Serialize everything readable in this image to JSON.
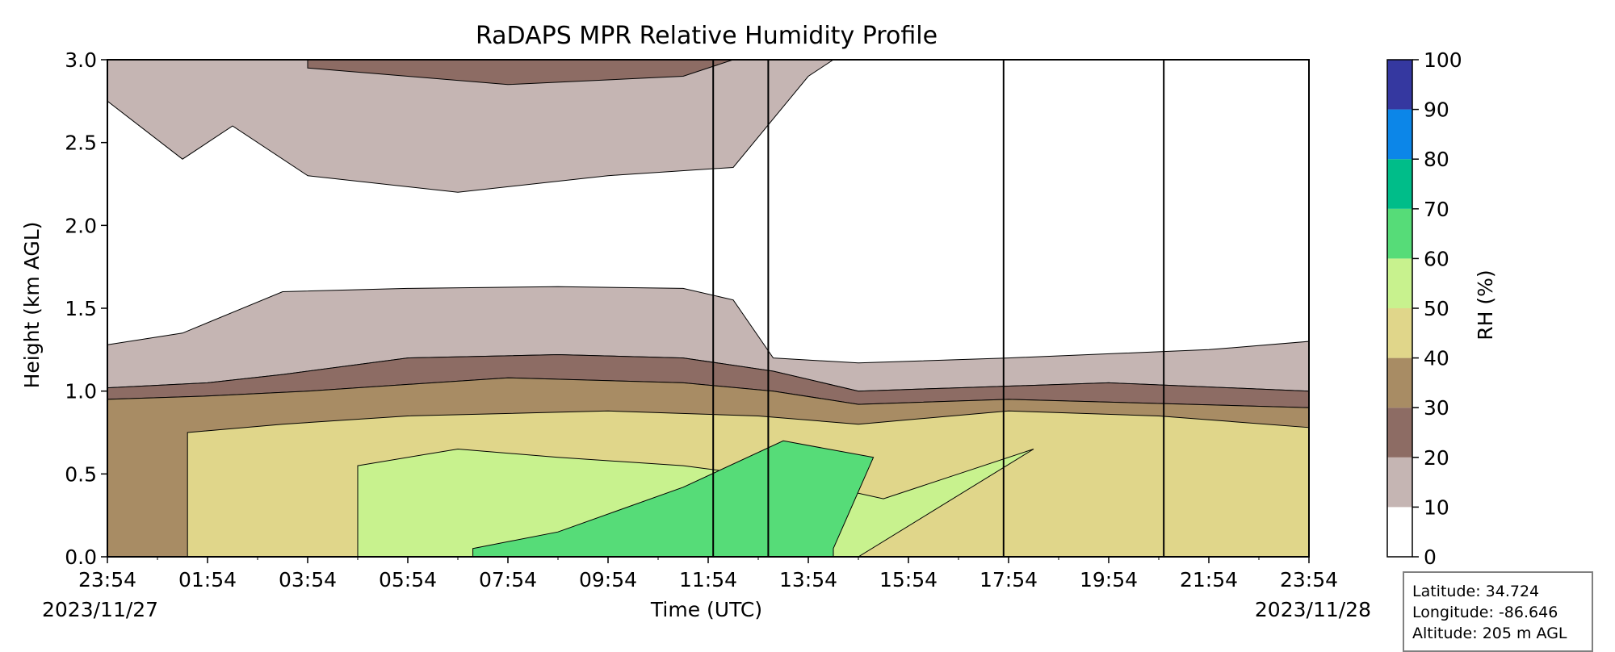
{
  "chart_data": {
    "type": "heatmap",
    "title": "RaDAPS MPR Relative Humidity Profile",
    "xlabel": "Time (UTC)",
    "ylabel": "Height (km AGL)",
    "x_ticks": [
      "23:54",
      "01:54",
      "03:54",
      "05:54",
      "07:54",
      "09:54",
      "11:54",
      "13:54",
      "15:54",
      "17:54",
      "19:54",
      "21:54",
      "23:54"
    ],
    "x_range_hours": [
      0,
      24
    ],
    "start_date": "2023/11/27",
    "end_date": "2023/11/28",
    "y_ticks": [
      "0.0",
      "0.5",
      "1.0",
      "1.5",
      "2.0",
      "2.5",
      "3.0"
    ],
    "ylim": [
      0,
      3.0
    ],
    "colorbar": {
      "label": "RH (%)",
      "levels": [
        0,
        10,
        20,
        30,
        40,
        50,
        60,
        70,
        80,
        90,
        100
      ],
      "tick_labels": [
        "0",
        "10",
        "20",
        "30",
        "40",
        "50",
        "60",
        "70",
        "80",
        "90",
        "100"
      ],
      "colors": [
        "#ffffff",
        "#c5b5b3",
        "#8d6c64",
        "#a88c64",
        "#e0d68a",
        "#c8f28e",
        "#56dc78",
        "#00bd89",
        "#0c86e8",
        "#3538a0"
      ]
    },
    "contour_bands": [
      {
        "range": [
          10,
          20
        ],
        "bottom": [
          [
            0,
            1.28
          ],
          [
            1.5,
            1.35
          ],
          [
            3.5,
            1.6
          ],
          [
            6,
            1.62
          ],
          [
            9,
            1.63
          ],
          [
            11.5,
            1.62
          ],
          [
            12.5,
            1.55
          ],
          [
            13.3,
            1.2
          ],
          [
            15,
            1.17
          ],
          [
            18,
            1.2
          ],
          [
            22,
            1.25
          ],
          [
            24,
            1.3
          ]
        ],
        "top": [
          [
            0,
            1.02
          ],
          [
            2,
            1.05
          ],
          [
            3.5,
            1.1
          ],
          [
            6,
            1.2
          ],
          [
            9,
            1.22
          ],
          [
            11.5,
            1.2
          ],
          [
            13.3,
            1.12
          ],
          [
            15,
            1.0
          ],
          [
            17,
            1.02
          ],
          [
            20,
            1.05
          ],
          [
            24,
            1.0
          ]
        ]
      },
      {
        "range": [
          20,
          30
        ],
        "bottom": [
          [
            0,
            1.02
          ],
          [
            2,
            1.05
          ],
          [
            3.5,
            1.1
          ],
          [
            6,
            1.2
          ],
          [
            9,
            1.22
          ],
          [
            11.5,
            1.2
          ],
          [
            13.3,
            1.12
          ],
          [
            15,
            1.0
          ],
          [
            17,
            1.02
          ],
          [
            20,
            1.05
          ],
          [
            24,
            1.0
          ]
        ],
        "top": [
          [
            0,
            0.95
          ],
          [
            2,
            0.97
          ],
          [
            4,
            1.0
          ],
          [
            8,
            1.08
          ],
          [
            11.5,
            1.05
          ],
          [
            13.3,
            1.0
          ],
          [
            15,
            0.92
          ],
          [
            18,
            0.95
          ],
          [
            24,
            0.9
          ]
        ]
      },
      {
        "range": [
          30,
          40
        ],
        "bottom": [
          [
            0,
            0.95
          ],
          [
            2,
            0.97
          ],
          [
            4,
            1.0
          ],
          [
            8,
            1.08
          ],
          [
            11.5,
            1.05
          ],
          [
            13.3,
            1.0
          ],
          [
            15,
            0.92
          ],
          [
            18,
            0.95
          ],
          [
            24,
            0.9
          ]
        ],
        "top": [
          [
            0,
            0.0
          ],
          [
            24,
            0.0
          ]
        ]
      },
      {
        "range": [
          40,
          50
        ],
        "bottom": [
          [
            1.6,
            0.75
          ],
          [
            3.5,
            0.8
          ],
          [
            6,
            0.85
          ],
          [
            10,
            0.88
          ],
          [
            13,
            0.85
          ],
          [
            15,
            0.8
          ],
          [
            18,
            0.88
          ],
          [
            21,
            0.85
          ],
          [
            24,
            0.78
          ]
        ],
        "top": [
          [
            1.6,
            0.0
          ],
          [
            24,
            0.0
          ]
        ]
      },
      {
        "range": [
          50,
          60
        ],
        "bottom": [
          [
            5,
            0.55
          ],
          [
            7,
            0.65
          ],
          [
            9,
            0.6
          ],
          [
            11.5,
            0.55
          ],
          [
            14,
            0.45
          ],
          [
            15.5,
            0.35
          ],
          [
            17,
            0.5
          ],
          [
            18.5,
            0.65
          ]
        ],
        "top": [
          [
            5,
            0.0
          ],
          [
            15,
            0.0
          ]
        ]
      },
      {
        "range": [
          60,
          70
        ],
        "bottom": [
          [
            7.3,
            0.05
          ],
          [
            9,
            0.15
          ],
          [
            11.5,
            0.42
          ],
          [
            13.5,
            0.7
          ],
          [
            15.3,
            0.6
          ],
          [
            14.5,
            0.05
          ]
        ],
        "top": [
          [
            7.3,
            0.0
          ],
          [
            14.5,
            0.0
          ]
        ]
      }
    ],
    "upper_layer_10_20": {
      "bottom": [
        [
          0,
          2.75
        ],
        [
          1.5,
          2.4
        ],
        [
          2.5,
          2.6
        ],
        [
          4,
          2.3
        ],
        [
          7,
          2.2
        ],
        [
          10,
          2.3
        ],
        [
          12.5,
          2.35
        ],
        [
          14,
          2.9
        ],
        [
          14.5,
          3.0
        ]
      ],
      "top": [
        [
          0,
          3.0
        ],
        [
          14.5,
          3.0
        ]
      ]
    },
    "upper_layer_20_30": {
      "bottom": [
        [
          4,
          2.95
        ],
        [
          6,
          2.9
        ],
        [
          8,
          2.85
        ],
        [
          11.5,
          2.9
        ],
        [
          12.5,
          3.0
        ]
      ],
      "top": [
        [
          4,
          3.0
        ],
        [
          12.5,
          3.0
        ]
      ]
    },
    "spikes_hours": [
      12.1,
      13.2,
      17.9,
      21.1
    ]
  },
  "info": {
    "latitude": "Latitude: 34.724",
    "longitude": "Longitude: -86.646",
    "altitude": "Altitude: 205 m AGL"
  }
}
